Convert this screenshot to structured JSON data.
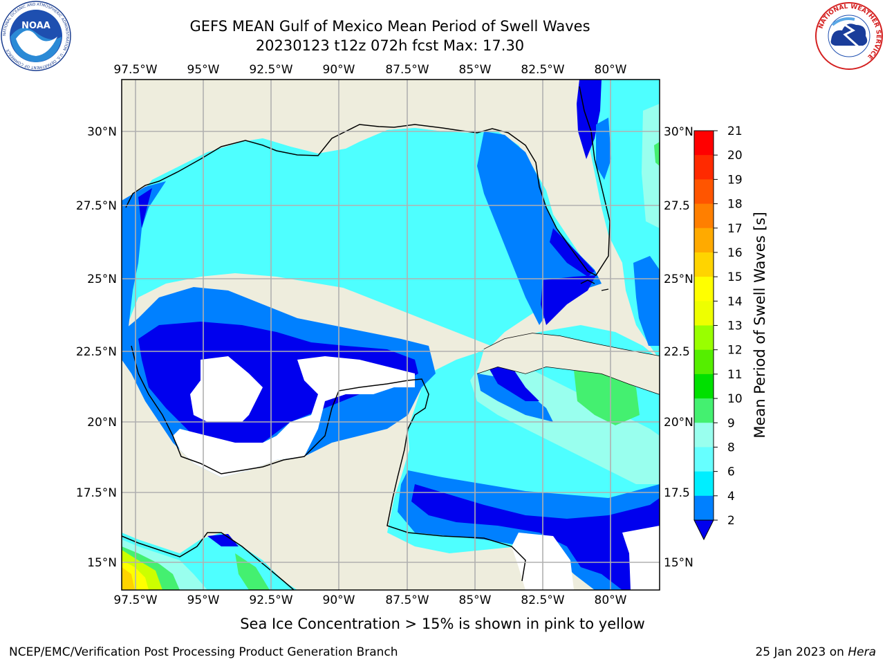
{
  "header": {
    "title_line1": "GEFS MEAN Gulf of Mexico Mean Period of Swell Waves",
    "title_line2": "20230123 t12z 072h fcst   Max: 17.30"
  },
  "logos": {
    "left": {
      "text": "NOAA",
      "ring_text": "NATIONAL OCEANIC AND ATMOSPHERIC ADMINISTRATION · U.S. DEPARTMENT OF COMMERCE"
    },
    "right": {
      "ring_text": "NATIONAL WEATHER SERVICE"
    }
  },
  "map": {
    "lon_labels": [
      "97.5°W",
      "95°W",
      "92.5°W",
      "90°W",
      "87.5°W",
      "85°W",
      "82.5°W",
      "80°W"
    ],
    "lat_labels_left": [
      "30°N",
      "27.5°N",
      "25°N",
      "22.5°N",
      "20°N",
      "17.5°N",
      "15°N"
    ],
    "lat_labels_right": [
      "30°N",
      "27.5",
      "25°N",
      "22.5",
      "20°N",
      "17.5",
      "15°N"
    ],
    "colors": {
      "land": "#eeeddd",
      "ocean_base": "#4effff",
      "grid": "#b0b0b0"
    }
  },
  "colorbar": {
    "label": "Mean Period of Swell Waves [s]",
    "ticks": [
      "21",
      "20",
      "19",
      "18",
      "17",
      "16",
      "15",
      "14",
      "13",
      "12",
      "11",
      "10",
      "9",
      "8",
      "6",
      "4",
      "2"
    ],
    "colors": [
      "#ff0000",
      "#ff2a00",
      "#ff5500",
      "#ff7f00",
      "#ffaa00",
      "#ffd400",
      "#ffff00",
      "#eeff00",
      "#ccff00",
      "#99ff00",
      "#55ee00",
      "#00e000",
      "#44f070",
      "#99ffee",
      "#66ffff",
      "#00eeff",
      "#0080ff",
      "#0000ee"
    ]
  },
  "subnote": "Sea Ice Concentration > 15% is shown in pink to yellow",
  "footer": {
    "left": "NCEP/EMC/Verification Post Processing Product Generation Branch",
    "right_prefix": "25 Jan 2023 on ",
    "right_host": "Hera"
  }
}
